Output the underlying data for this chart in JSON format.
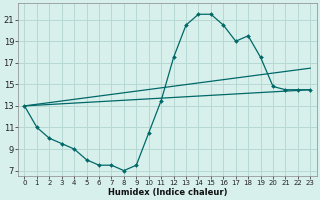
{
  "background_color": "#d8f0ec",
  "grid_color": "#b8d8d4",
  "line_color": "#006868",
  "xlabel": "Humidex (Indice chaleur)",
  "xlim": [
    -0.5,
    23.5
  ],
  "ylim": [
    6.5,
    22.5
  ],
  "yticks": [
    7,
    9,
    11,
    13,
    15,
    17,
    19,
    21
  ],
  "xticks": [
    0,
    1,
    2,
    3,
    4,
    5,
    6,
    7,
    8,
    9,
    10,
    11,
    12,
    13,
    14,
    15,
    16,
    17,
    18,
    19,
    20,
    21,
    22,
    23
  ],
  "curve1_x": [
    0,
    1,
    2,
    3,
    4,
    5,
    6,
    7,
    8,
    9,
    10,
    11,
    12,
    13,
    14,
    15,
    16,
    17,
    18,
    19,
    20,
    21,
    22,
    23
  ],
  "curve1_y": [
    13,
    11,
    10,
    9.5,
    9,
    8,
    7.5,
    7.5,
    7,
    7.5,
    10.5,
    13.5,
    17.5,
    20.5,
    21.5,
    21.5,
    20.5,
    19,
    19.5,
    17.5,
    14.8,
    14.5,
    14.5,
    14.5
  ],
  "curve2_x": [
    0,
    23
  ],
  "curve2_y": [
    13,
    14.5
  ],
  "curve3_x": [
    0,
    23
  ],
  "curve3_y": [
    13,
    16.5
  ]
}
